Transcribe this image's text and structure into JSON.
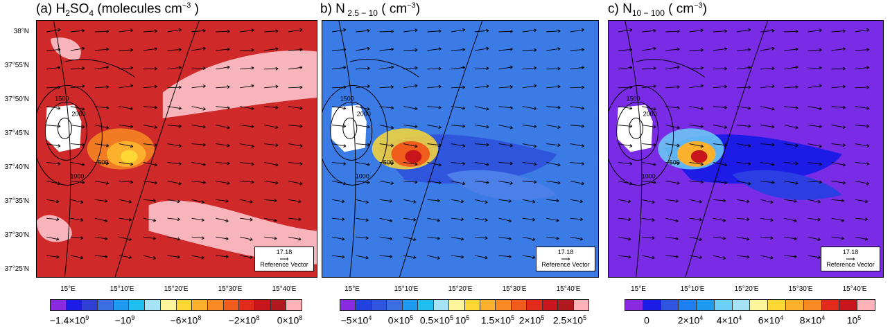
{
  "panels": [
    {
      "title_prefix": "(a) H",
      "title_sub1": "2",
      "title_mid": "SO",
      "title_sub2": "4",
      "title_unit": " (molecules cm",
      "title_sup": "−3",
      "title_close": " )",
      "colormap": "red",
      "background_color": "#cf2929",
      "colorbar_colors": [
        "#8a2be2",
        "#1c1ce6",
        "#2f3fd6",
        "#3b6fe0",
        "#1e9bf0",
        "#20bff0",
        "#a6e3f5",
        "#fff59a",
        "#fdd835",
        "#fbb12e",
        "#f78a22",
        "#f05c1c",
        "#e22b1b",
        "#c8151b",
        "#b01a1f",
        "#ffb3b8"
      ],
      "colorbar_labels": [
        {
          "base": "−1.4×10",
          "exp": "9"
        },
        {
          "base": "−10",
          "exp": "9"
        },
        {
          "base": "−6×10",
          "exp": "8"
        },
        {
          "base": "−2×10",
          "exp": "8"
        },
        {
          "base": "0×10",
          "exp": "8"
        }
      ]
    },
    {
      "title_prefix": "b) N",
      "title_sub1": " 2.5 − 10",
      "title_unit": " ( cm",
      "title_sup": "−3",
      "title_close": ")",
      "colormap": "blue",
      "background_color": "#3a7be6",
      "colorbar_colors": [
        "#8a2be2",
        "#2040e0",
        "#2f55e0",
        "#3b6fe0",
        "#1e9bf0",
        "#20bff0",
        "#a6e3f5",
        "#fff59a",
        "#fdd835",
        "#fbb12e",
        "#f78a22",
        "#f05c1c",
        "#e22b1b",
        "#c8151b",
        "#b01a1f",
        "#ffb3b8"
      ],
      "colorbar_labels": [
        {
          "base": "−5×10",
          "exp": "4"
        },
        {
          "base": "0×10",
          "exp": "5"
        },
        {
          "base": "0.5×10",
          "exp": "5"
        },
        {
          "base": "10",
          "exp": "5"
        },
        {
          "base": "1.5×10",
          "exp": "5"
        },
        {
          "base": "2×10",
          "exp": "5"
        },
        {
          "base": "2.5×10",
          "exp": "5"
        }
      ]
    },
    {
      "title_prefix": "c) N",
      "title_sub1": "10 − 100",
      "title_unit": " ( cm",
      "title_sup": "−3",
      "title_close": ")",
      "colormap": "purple",
      "background_color": "#7a2be6",
      "colorbar_colors": [
        "#8a2be2",
        "#1c1ce6",
        "#2f55e0",
        "#1e80f0",
        "#1e9bf0",
        "#6ccff5",
        "#a6e3f5",
        "#fff59a",
        "#fdd835",
        "#fbb12e",
        "#f78a22",
        "#e22b1b",
        "#c8151b",
        "#ffb3b8"
      ],
      "colorbar_labels": [
        {
          "base": "0",
          "exp": ""
        },
        {
          "base": "2×10",
          "exp": "4"
        },
        {
          "base": "4×10",
          "exp": "4"
        },
        {
          "base": "6×10",
          "exp": "4"
        },
        {
          "base": "8×10",
          "exp": "4"
        },
        {
          "base": "10",
          "exp": "5"
        }
      ]
    }
  ],
  "lat_labels": [
    "38°N",
    "37°55'N",
    "37°50'N",
    "37°45'N",
    "37°40'N",
    "37°35'N",
    "37°30'N",
    "37°25'N"
  ],
  "lon_labels": [
    "15°E",
    "15°10'E",
    "15°20'E",
    "15°30'E",
    "15°40'E"
  ],
  "contour_labels": [
    "500",
    "1000",
    "1500",
    "2000"
  ],
  "reference_vector": {
    "value": "17.18",
    "label": "Reference Vector"
  }
}
